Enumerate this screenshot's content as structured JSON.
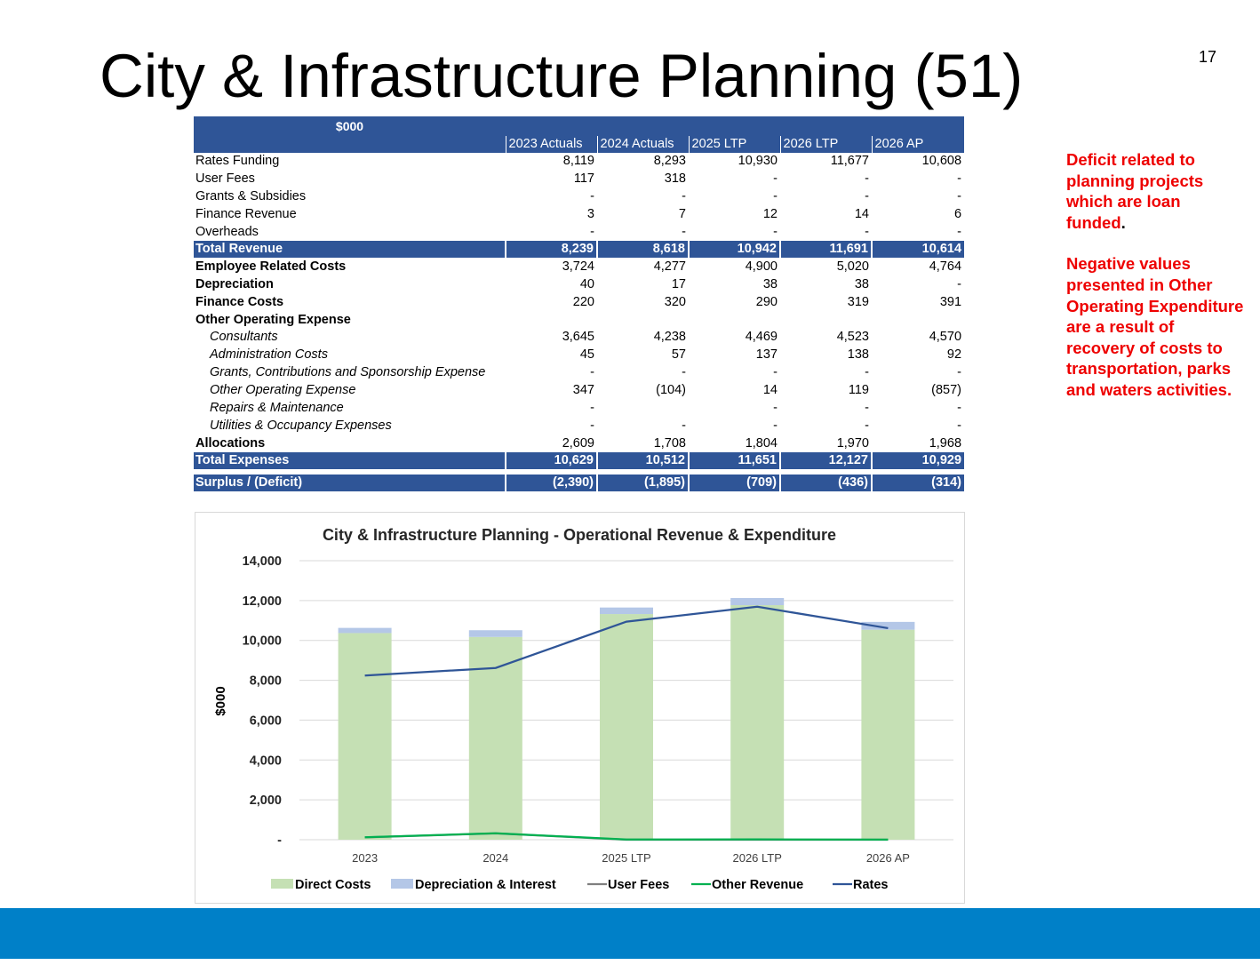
{
  "title": "City & Infrastructure Planning (51)",
  "page_number": "17",
  "table": {
    "unit_label": "$000",
    "columns": [
      "2023 Actuals",
      "2024 Actuals",
      "2025 LTP",
      "2026 LTP",
      "2026 AP"
    ],
    "rows": [
      {
        "label": "Rates Funding",
        "style": "normal",
        "values": [
          "8,119",
          "8,293",
          "10,930",
          "11,677",
          "10,608"
        ]
      },
      {
        "label": "User Fees",
        "style": "normal",
        "values": [
          "117",
          "318",
          "-",
          "-",
          "-"
        ]
      },
      {
        "label": "Grants & Subsidies",
        "style": "normal",
        "values": [
          "-",
          "-",
          "-",
          "-",
          "-"
        ]
      },
      {
        "label": "Finance Revenue",
        "style": "normal",
        "values": [
          "3",
          "7",
          "12",
          "14",
          "6"
        ]
      },
      {
        "label": "Overheads",
        "style": "normal",
        "values": [
          "-",
          "-",
          "-",
          "-",
          "-"
        ]
      },
      {
        "label": "Total Revenue",
        "style": "total",
        "values": [
          "8,239",
          "8,618",
          "10,942",
          "11,691",
          "10,614"
        ]
      },
      {
        "label": "Employee Related Costs",
        "style": "bold",
        "values": [
          "3,724",
          "4,277",
          "4,900",
          "5,020",
          "4,764"
        ]
      },
      {
        "label": "Depreciation",
        "style": "bold",
        "values": [
          "40",
          "17",
          "38",
          "38",
          "-"
        ]
      },
      {
        "label": "Finance Costs",
        "style": "bold",
        "values": [
          "220",
          "320",
          "290",
          "319",
          "391"
        ]
      },
      {
        "label": "Other Operating  Expense",
        "style": "bold",
        "values": [
          "",
          "",
          "",
          "",
          ""
        ]
      },
      {
        "label": "Consultants",
        "style": "sub",
        "values": [
          "3,645",
          "4,238",
          "4,469",
          "4,523",
          "4,570"
        ]
      },
      {
        "label": "Administration Costs",
        "style": "sub",
        "values": [
          "45",
          "57",
          "137",
          "138",
          "92"
        ]
      },
      {
        "label": "Grants, Contributions and Sponsorship Expense",
        "style": "sub",
        "values": [
          "-",
          "-",
          "-",
          "-",
          "-"
        ]
      },
      {
        "label": "Other Operating Expense",
        "style": "sub",
        "values": [
          "347",
          "(104)",
          "14",
          "119",
          "(857)"
        ]
      },
      {
        "label": "Repairs & Maintenance",
        "style": "sub",
        "values": [
          "-",
          "",
          "-",
          "-",
          "-"
        ]
      },
      {
        "label": "Utilities & Occupancy Expenses",
        "style": "sub",
        "values": [
          "-",
          "-",
          "-",
          "-",
          "-"
        ]
      },
      {
        "label": "Allocations",
        "style": "bold",
        "values": [
          "2,609",
          "1,708",
          "1,804",
          "1,970",
          "1,968"
        ]
      },
      {
        "label": "Total Expenses",
        "style": "total",
        "values": [
          "10,629",
          "10,512",
          "11,651",
          "12,127",
          "10,929"
        ]
      },
      {
        "label": "",
        "style": "spacer",
        "values": [
          "",
          "",
          "",
          "",
          ""
        ]
      },
      {
        "label": "Surplus / (Deficit)",
        "style": "total",
        "values": [
          "(2,390)",
          "(1,895)",
          "(709)",
          "(436)",
          "(314)"
        ]
      }
    ]
  },
  "notes": {
    "note1": "Deficit related to planning projects which are loan funded",
    "note1_end": ".",
    "note2": "Negative values presented in Other Operating Expenditure are a result of recovery of costs to transportation, parks and waters activities."
  },
  "chart_data": {
    "type": "bar",
    "title": "City & Infrastructure Planning - Operational Revenue & Expenditure",
    "ylabel": "$000",
    "xlabel": "",
    "ylim": [
      0,
      14000
    ],
    "yticks": [
      0,
      2000,
      4000,
      6000,
      8000,
      10000,
      12000,
      14000
    ],
    "ytick_labels": [
      "-",
      "2,000",
      "4,000",
      "6,000",
      "8,000",
      "10,000",
      "12,000",
      "14,000"
    ],
    "categories": [
      "2023",
      "2024",
      "2025 LTP",
      "2026 LTP",
      "2026 AP"
    ],
    "stacked": true,
    "grid": true,
    "legend_position": "bottom",
    "series": [
      {
        "name": "Direct Costs",
        "kind": "bar",
        "color": "#c5e0b4",
        "values": [
          10369,
          10175,
          11323,
          11770,
          10538
        ]
      },
      {
        "name": "Depreciation & Interest",
        "kind": "bar",
        "color": "#b4c7e7",
        "values": [
          260,
          337,
          328,
          357,
          391
        ]
      },
      {
        "name": "User Fees",
        "kind": "line",
        "color": "#7f7f7f",
        "values": [
          117,
          318,
          0,
          0,
          0
        ]
      },
      {
        "name": "Other Revenue",
        "kind": "line",
        "color": "#00b050",
        "values": [
          120,
          325,
          12,
          14,
          6
        ]
      },
      {
        "name": "Rates",
        "kind": "line",
        "color": "#2f5597",
        "values": [
          8239,
          8618,
          10942,
          11691,
          10614
        ]
      }
    ]
  },
  "colors": {
    "table_header": "#2f5597",
    "note_text": "#ee0000",
    "footer_band": "#0080c8",
    "gridline": "#d9d9d9"
  }
}
